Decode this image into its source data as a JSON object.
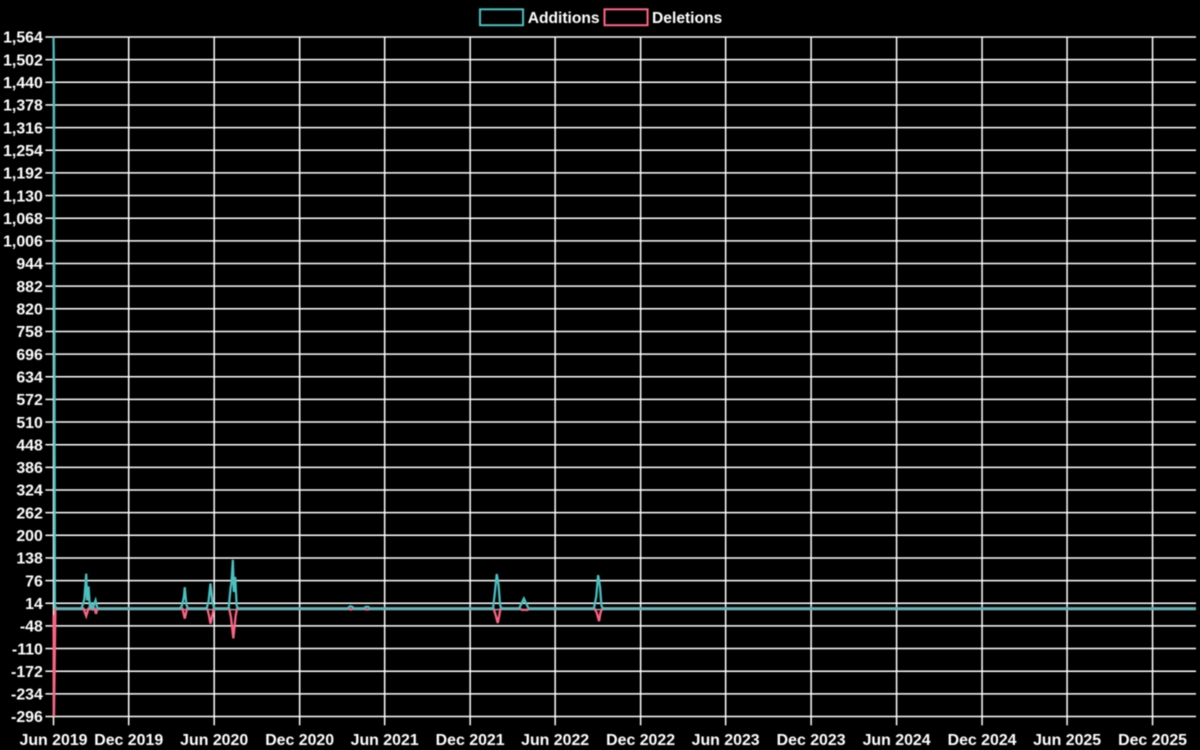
{
  "chart_data": {
    "type": "line",
    "background_color": "#000000",
    "grid_color": "#ffffff",
    "text_color": "#ffffff",
    "zero_line_color": "#aaa2a8",
    "legend_position": "top",
    "legend": [
      "Additions",
      "Deletions"
    ],
    "x_axis": {
      "start": "2019-06-23",
      "end": "2026-03-04",
      "tick_labels": [
        "Jun 2019",
        "Dec 2019",
        "Jun 2020",
        "Dec 2020",
        "Jun 2021",
        "Dec 2021",
        "Jun 2022",
        "Dec 2022",
        "Jun 2023",
        "Dec 2023",
        "Jun 2024",
        "Dec 2024",
        "Jun 2025",
        "Dec 2025"
      ],
      "tick_dates": [
        "2019-06-23",
        "2019-12-01",
        "2020-06-01",
        "2020-12-01",
        "2021-06-01",
        "2021-12-01",
        "2022-06-01",
        "2022-12-01",
        "2023-06-01",
        "2023-12-01",
        "2024-06-01",
        "2024-12-01",
        "2025-06-01",
        "2025-12-01"
      ]
    },
    "y_axis": {
      "min": -296,
      "max": 1564,
      "step": 62,
      "tick_labels": [
        "-296",
        "-234",
        "-172",
        "-110",
        "-48",
        "14",
        "76",
        "138",
        "200",
        "262",
        "324",
        "386",
        "448",
        "510",
        "572",
        "634",
        "696",
        "758",
        "820",
        "882",
        "944",
        "1,006",
        "1,068",
        "1,130",
        "1,192",
        "1,254",
        "1,316",
        "1,378",
        "1,440",
        "1,502",
        "1,564"
      ]
    },
    "series": [
      {
        "name": "Additions",
        "color": "#4bc0c0",
        "points": [
          [
            "2019-06-23",
            1564
          ],
          [
            "2019-06-24",
            1455
          ],
          [
            "2019-06-26",
            8
          ],
          [
            "2019-06-29",
            0
          ],
          [
            "2019-08-22",
            0
          ],
          [
            "2019-08-25",
            12
          ],
          [
            "2019-08-28",
            25
          ],
          [
            "2019-09-01",
            95
          ],
          [
            "2019-09-03",
            22
          ],
          [
            "2019-09-06",
            60
          ],
          [
            "2019-09-09",
            0
          ],
          [
            "2019-09-12",
            10
          ],
          [
            "2019-09-15",
            0
          ],
          [
            "2019-09-21",
            22
          ],
          [
            "2019-09-25",
            0
          ],
          [
            "2020-03-20",
            0
          ],
          [
            "2020-03-24",
            8
          ],
          [
            "2020-03-28",
            30
          ],
          [
            "2020-03-30",
            58
          ],
          [
            "2020-04-01",
            30
          ],
          [
            "2020-04-03",
            8
          ],
          [
            "2020-04-06",
            0
          ],
          [
            "2020-05-16",
            0
          ],
          [
            "2020-05-20",
            20
          ],
          [
            "2020-05-24",
            68
          ],
          [
            "2020-05-28",
            20
          ],
          [
            "2020-06-01",
            0
          ],
          [
            "2020-07-02",
            0
          ],
          [
            "2020-07-06",
            55
          ],
          [
            "2020-07-08",
            70
          ],
          [
            "2020-07-11",
            133
          ],
          [
            "2020-07-13",
            45
          ],
          [
            "2020-07-16",
            86
          ],
          [
            "2020-07-19",
            10
          ],
          [
            "2020-07-21",
            0
          ],
          [
            "2021-03-14",
            0
          ],
          [
            "2021-03-17",
            4
          ],
          [
            "2021-03-20",
            6
          ],
          [
            "2021-03-24",
            4
          ],
          [
            "2021-03-27",
            0
          ],
          [
            "2021-04-19",
            0
          ],
          [
            "2021-04-21",
            4
          ],
          [
            "2021-04-27",
            4
          ],
          [
            "2021-04-29",
            0
          ],
          [
            "2022-01-19",
            0
          ],
          [
            "2022-01-23",
            44
          ],
          [
            "2022-01-27",
            94
          ],
          [
            "2022-01-31",
            62
          ],
          [
            "2022-02-03",
            10
          ],
          [
            "2022-02-06",
            0
          ],
          [
            "2022-03-16",
            0
          ],
          [
            "2022-03-26",
            27
          ],
          [
            "2022-04-05",
            0
          ],
          [
            "2022-08-23",
            0
          ],
          [
            "2022-08-28",
            33
          ],
          [
            "2022-09-01",
            91
          ],
          [
            "2022-09-05",
            60
          ],
          [
            "2022-09-08",
            8
          ],
          [
            "2022-09-11",
            0
          ],
          [
            "2026-03-04",
            0
          ]
        ]
      },
      {
        "name": "Deletions",
        "color": "#ff6384",
        "points": [
          [
            "2019-06-23",
            -18
          ],
          [
            "2019-06-24",
            -296
          ],
          [
            "2019-06-27",
            0
          ],
          [
            "2019-08-26",
            0
          ],
          [
            "2019-09-01",
            -21
          ],
          [
            "2019-09-06",
            0
          ],
          [
            "2019-09-19",
            0
          ],
          [
            "2019-09-22",
            -15
          ],
          [
            "2019-09-25",
            0
          ],
          [
            "2020-03-25",
            0
          ],
          [
            "2020-03-30",
            -28
          ],
          [
            "2020-04-04",
            0
          ],
          [
            "2020-05-17",
            0
          ],
          [
            "2020-05-21",
            -20
          ],
          [
            "2020-05-24",
            -42
          ],
          [
            "2020-05-28",
            -20
          ],
          [
            "2020-05-31",
            0
          ],
          [
            "2020-07-03",
            0
          ],
          [
            "2020-07-07",
            -25
          ],
          [
            "2020-07-12",
            -82
          ],
          [
            "2020-07-17",
            -20
          ],
          [
            "2020-07-20",
            0
          ],
          [
            "2021-03-17",
            0
          ],
          [
            "2021-03-20",
            -3.5
          ],
          [
            "2021-03-26",
            0
          ],
          [
            "2021-04-20",
            0
          ],
          [
            "2021-04-22",
            -3
          ],
          [
            "2021-04-27",
            -3
          ],
          [
            "2021-04-29",
            0
          ],
          [
            "2022-01-20",
            0
          ],
          [
            "2022-01-25",
            -20
          ],
          [
            "2022-01-29",
            -40
          ],
          [
            "2022-02-01",
            -22
          ],
          [
            "2022-02-04",
            0
          ],
          [
            "2022-03-17",
            0
          ],
          [
            "2022-03-22",
            -4
          ],
          [
            "2022-04-03",
            -4
          ],
          [
            "2022-04-08",
            0
          ],
          [
            "2022-08-24",
            0
          ],
          [
            "2022-08-29",
            -12
          ],
          [
            "2022-09-03",
            -35
          ],
          [
            "2022-09-06",
            -12
          ],
          [
            "2022-09-10",
            0
          ],
          [
            "2026-03-04",
            0
          ]
        ]
      }
    ]
  }
}
